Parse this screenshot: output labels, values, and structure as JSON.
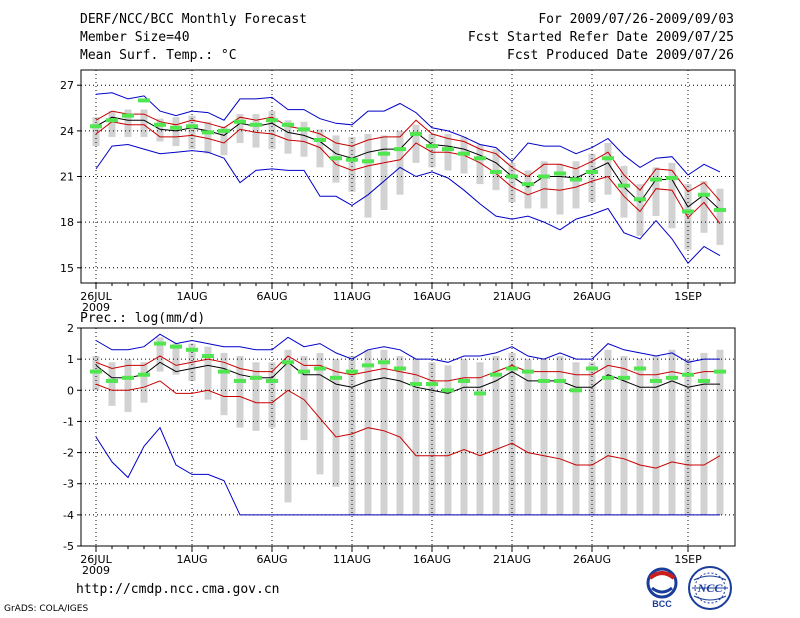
{
  "header": {
    "title": "DERF/NCC/BCC Monthly Forecast",
    "member_size": "Member Size=40",
    "variable": "Mean Surf. Temp.: °C",
    "period": "For 2009/07/26-2009/09/03",
    "fcst_started": "Fcst Started Refer Date 2009/07/25",
    "fcst_produced": "Fcst Produced Date 2009/07/26"
  },
  "footer": {
    "url": "http://cmdp.ncc.cma.gov.cn",
    "credit": "GrADS: COLA/IGES",
    "logo_bcc": "BCC",
    "logo_ncc": "NCC"
  },
  "colors": {
    "max_min": "#0000c8",
    "spread": "#c80000",
    "mean": "#000000",
    "obs": "#50e650",
    "box": "#d2d2d2",
    "grid": "#000000"
  },
  "chart_data": [
    {
      "type": "line",
      "title": "Mean Surf. Temp.: °C",
      "ylim": [
        14,
        28
      ],
      "yticks": [
        15,
        18,
        21,
        24,
        27
      ],
      "x_tick_labels": [
        "26JUL",
        "1AUG",
        "6AUG",
        "11AUG",
        "16AUG",
        "21AUG",
        "26AUG",
        "1SEP"
      ],
      "x_tick_days": [
        0,
        6,
        11,
        16,
        21,
        26,
        31,
        37
      ],
      "year_label": "2009",
      "days": 40,
      "series": [
        {
          "name": "max",
          "values": [
            26.4,
            26.5,
            26.1,
            26.3,
            25.3,
            25.0,
            25.3,
            25.2,
            24.7,
            26.1,
            26.1,
            26.2,
            25.4,
            25.4,
            24.8,
            24.5,
            24.4,
            25.3,
            25.3,
            25.8,
            25.2,
            24.2,
            24.0,
            23.6,
            23.1,
            22.9,
            22.0,
            23.2,
            23.0,
            23.0,
            22.5,
            22.9,
            23.5,
            22.4,
            21.6,
            22.2,
            22.3,
            21.1,
            21.8,
            21.3
          ]
        },
        {
          "name": "upper",
          "values": [
            24.7,
            25.3,
            25.1,
            25.1,
            24.6,
            24.4,
            24.7,
            24.5,
            24.2,
            24.9,
            24.7,
            24.9,
            24.3,
            24.1,
            23.8,
            23.2,
            23.0,
            23.4,
            23.6,
            23.6,
            24.7,
            23.8,
            23.5,
            23.3,
            22.8,
            22.5,
            21.6,
            21.0,
            21.8,
            21.8,
            21.5,
            22.0,
            22.6,
            21.1,
            20.1,
            21.5,
            21.4,
            20.0,
            20.6,
            19.4
          ]
        },
        {
          "name": "mean",
          "values": [
            24.3,
            24.9,
            24.7,
            24.7,
            24.1,
            24.0,
            24.2,
            24.0,
            23.7,
            24.5,
            24.3,
            24.5,
            23.9,
            23.7,
            23.3,
            22.5,
            22.2,
            22.6,
            22.8,
            22.8,
            23.9,
            23.1,
            23.0,
            22.8,
            22.4,
            21.9,
            21.0,
            20.3,
            21.0,
            21.0,
            20.9,
            21.4,
            21.9,
            20.3,
            19.3,
            20.8,
            20.8,
            19.0,
            19.8,
            18.8
          ]
        },
        {
          "name": "lower",
          "values": [
            23.8,
            24.6,
            24.4,
            24.4,
            23.6,
            23.6,
            23.7,
            23.5,
            23.2,
            24.1,
            23.9,
            23.8,
            23.4,
            23.3,
            22.9,
            21.8,
            21.4,
            21.7,
            21.9,
            22.1,
            23.2,
            22.6,
            22.6,
            22.4,
            21.9,
            21.2,
            20.3,
            19.8,
            20.2,
            20.1,
            20.3,
            20.7,
            21.0,
            19.7,
            18.7,
            20.2,
            20.1,
            18.3,
            19.3,
            17.9
          ]
        },
        {
          "name": "min",
          "values": [
            21.5,
            23.0,
            23.1,
            22.8,
            22.5,
            22.6,
            22.7,
            22.6,
            22.2,
            20.6,
            21.4,
            21.5,
            21.4,
            21.4,
            19.7,
            19.7,
            19.1,
            19.8,
            20.7,
            21.6,
            21.0,
            21.3,
            20.9,
            20.1,
            19.2,
            18.4,
            18.2,
            18.4,
            18.0,
            17.5,
            18.2,
            18.5,
            18.9,
            17.3,
            16.9,
            18.1,
            16.9,
            15.3,
            16.4,
            15.8
          ]
        },
        {
          "name": "obs",
          "values": [
            24.3,
            24.7,
            25.0,
            26.0,
            24.4,
            24.2,
            24.3,
            23.9,
            24.0,
            24.6,
            24.4,
            24.7,
            24.4,
            24.1,
            23.4,
            22.2,
            22.1,
            22.0,
            22.5,
            22.8,
            23.8,
            23.0,
            22.8,
            22.5,
            22.2,
            21.3,
            21.0,
            20.5,
            21.0,
            21.2,
            20.8,
            21.3,
            22.2,
            20.4,
            19.5,
            20.8,
            20.9,
            18.7,
            19.8,
            18.8
          ]
        }
      ],
      "box_high": [
        24.9,
        25.3,
        25.4,
        25.4,
        24.8,
        24.9,
        25.0,
        24.6,
        24.3,
        25.1,
        25.1,
        25.3,
        24.7,
        24.6,
        24.1,
        23.7,
        23.6,
        23.8,
        23.7,
        24.0,
        24.4,
        23.8,
        23.8,
        23.6,
        23.1,
        22.8,
        21.9,
        21.4,
        22.0,
        21.8,
        22.0,
        22.5,
        23.2,
        21.7,
        20.5,
        21.6,
        21.9,
        20.5,
        20.7,
        20.2
      ],
      "box_low": [
        23.0,
        23.6,
        23.6,
        23.6,
        23.3,
        23.0,
        22.8,
        22.5,
        22.4,
        23.2,
        22.9,
        22.8,
        22.5,
        22.3,
        21.6,
        20.6,
        20.0,
        18.3,
        18.8,
        19.8,
        21.9,
        21.6,
        21.4,
        21.2,
        20.5,
        20.1,
        19.3,
        18.9,
        18.9,
        18.5,
        18.9,
        19.3,
        19.8,
        18.3,
        17.1,
        18.4,
        17.6,
        16.2,
        17.3,
        16.5
      ]
    },
    {
      "type": "line",
      "title": "Prec.: log(mm/d)",
      "ylim": [
        -5,
        2
      ],
      "yticks": [
        -5,
        -4,
        -3,
        -2,
        -1,
        0,
        1,
        2
      ],
      "x_tick_labels": [
        "26JUL",
        "1AUG",
        "6AUG",
        "11AUG",
        "16AUG",
        "21AUG",
        "26AUG",
        "1SEP"
      ],
      "x_tick_days": [
        0,
        6,
        11,
        16,
        21,
        26,
        31,
        37
      ],
      "year_label": "2009",
      "days": 40,
      "series": [
        {
          "name": "max",
          "values": [
            1.6,
            1.3,
            1.3,
            1.4,
            1.8,
            1.5,
            1.6,
            1.5,
            1.4,
            1.4,
            1.3,
            1.3,
            1.7,
            1.4,
            1.5,
            1.2,
            1.0,
            1.3,
            1.4,
            1.3,
            1.0,
            1.0,
            0.9,
            1.1,
            1.1,
            1.2,
            1.4,
            1.1,
            1.0,
            1.2,
            1.0,
            1.0,
            1.5,
            1.3,
            1.2,
            1.1,
            1.2,
            0.9,
            1.0,
            1.0
          ]
        },
        {
          "name": "upper",
          "values": [
            0.9,
            0.7,
            0.8,
            0.8,
            1.1,
            0.8,
            0.9,
            1.0,
            0.9,
            0.7,
            0.6,
            0.6,
            1.1,
            0.8,
            0.8,
            0.6,
            0.5,
            0.6,
            0.7,
            0.6,
            0.5,
            0.3,
            0.3,
            0.4,
            0.4,
            0.6,
            0.8,
            0.6,
            0.6,
            0.6,
            0.5,
            0.5,
            0.8,
            0.7,
            0.5,
            0.5,
            0.6,
            0.5,
            0.6,
            0.6
          ]
        },
        {
          "name": "mean",
          "values": [
            0.8,
            0.4,
            0.4,
            0.5,
            0.9,
            0.6,
            0.7,
            0.8,
            0.7,
            0.5,
            0.4,
            0.4,
            0.9,
            0.5,
            0.5,
            0.2,
            0.1,
            0.3,
            0.4,
            0.3,
            0.1,
            0.0,
            -0.1,
            0.1,
            0.1,
            0.3,
            0.6,
            0.3,
            0.3,
            0.3,
            0.1,
            0.1,
            0.5,
            0.3,
            0.1,
            0.1,
            0.3,
            0.1,
            0.2,
            0.2
          ]
        },
        {
          "name": "lower",
          "values": [
            0.2,
            0.0,
            0.0,
            0.1,
            0.3,
            -0.1,
            -0.1,
            0.0,
            -0.2,
            -0.2,
            -0.4,
            -0.4,
            0.0,
            -0.3,
            -0.9,
            -1.5,
            -1.4,
            -1.2,
            -1.3,
            -1.5,
            -2.1,
            -2.1,
            -2.1,
            -1.9,
            -2.1,
            -1.9,
            -1.7,
            -2.0,
            -2.1,
            -2.2,
            -2.4,
            -2.4,
            -2.1,
            -2.2,
            -2.4,
            -2.5,
            -2.3,
            -2.4,
            -2.4,
            -2.1
          ]
        },
        {
          "name": "min",
          "values": [
            -1.5,
            -2.3,
            -2.8,
            -1.8,
            -1.2,
            -2.4,
            -2.7,
            -2.7,
            -2.9,
            -4.0,
            -4.0,
            -4.0,
            -4.0,
            -4.0,
            -4.0,
            -4.0,
            -4.0,
            -4.0,
            -4.0,
            -4.0,
            -4.0,
            -4.0,
            -4.0,
            -4.0,
            -4.0,
            -4.0,
            -4.0,
            -4.0,
            -4.0,
            -4.0,
            -4.0,
            -4.0,
            -4.0,
            -4.0,
            -4.0,
            -4.0,
            -4.0,
            -4.0,
            -4.0,
            -4.0
          ]
        },
        {
          "name": "obs",
          "values": [
            0.6,
            0.3,
            0.4,
            0.5,
            1.5,
            1.4,
            1.3,
            1.1,
            0.6,
            0.3,
            0.4,
            0.3,
            0.9,
            0.6,
            0.7,
            0.4,
            0.6,
            0.8,
            0.9,
            0.7,
            0.2,
            0.2,
            0.0,
            0.3,
            -0.1,
            0.5,
            0.7,
            0.6,
            0.3,
            0.3,
            0.0,
            0.7,
            0.4,
            0.4,
            0.7,
            0.3,
            0.4,
            0.5,
            0.3,
            0.6
          ]
        }
      ],
      "box_high": [
        1.1,
        0.9,
        1.0,
        0.9,
        1.7,
        1.5,
        1.5,
        1.4,
        1.2,
        1.1,
        0.9,
        0.9,
        1.3,
        1.1,
        1.2,
        1.0,
        1.1,
        1.3,
        1.3,
        1.1,
        1.0,
        0.9,
        0.8,
        1.0,
        0.9,
        1.1,
        1.2,
        1.0,
        1.0,
        1.1,
        0.9,
        0.9,
        1.3,
        1.1,
        1.0,
        1.1,
        1.3,
        1.0,
        1.2,
        1.3
      ],
      "box_low": [
        0.0,
        -0.5,
        -0.7,
        -0.4,
        0.6,
        0.5,
        0.3,
        -0.3,
        -0.8,
        -1.2,
        -1.3,
        -1.2,
        -3.6,
        -1.6,
        -2.7,
        -3.1,
        -4.0,
        -4.0,
        -4.0,
        -4.0,
        -4.0,
        -4.0,
        -4.0,
        -4.0,
        -4.0,
        -4.0,
        -4.0,
        -4.0,
        -4.0,
        -4.0,
        -4.0,
        -4.0,
        -4.0,
        -4.0,
        -4.0,
        -4.0,
        -4.0,
        -4.0,
        -4.0,
        -4.0
      ]
    }
  ]
}
